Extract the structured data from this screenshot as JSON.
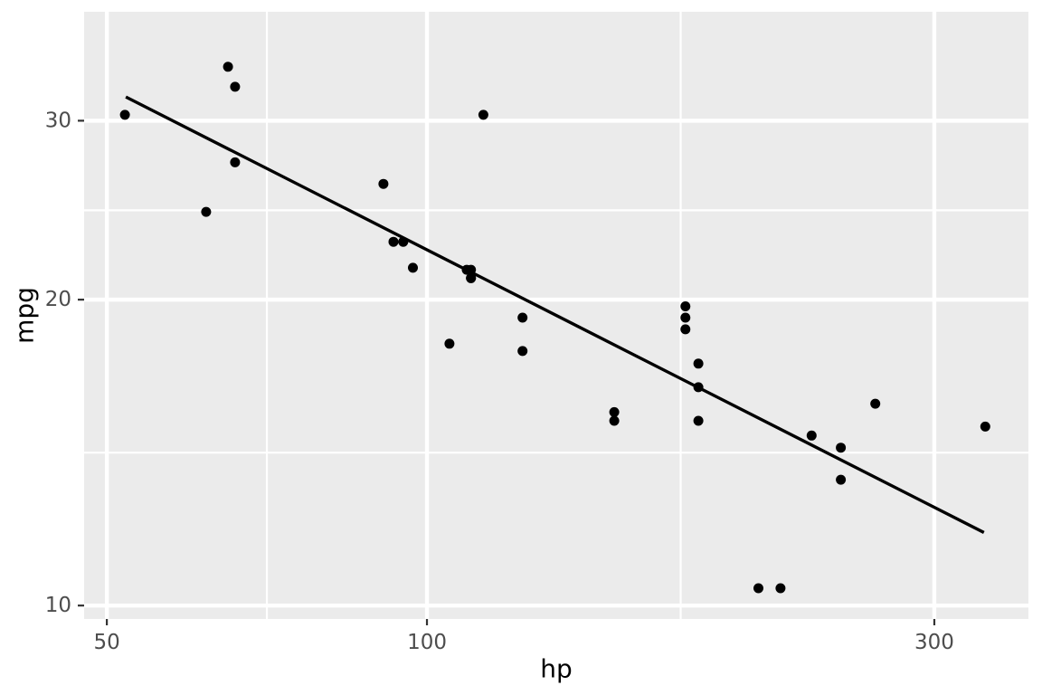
{
  "chart_data": {
    "type": "scatter",
    "title": "",
    "xlabel": "hp",
    "ylabel": "mpg",
    "x_scale": "log10",
    "y_scale": "log10",
    "x_ticks": [
      50,
      100,
      300
    ],
    "y_ticks": [
      10,
      20,
      30
    ],
    "x_minor_breaks": [
      70.71,
      173.21
    ],
    "y_minor_breaks": [
      14.14,
      24.49
    ],
    "x_range": [
      47.6,
      367.8
    ],
    "y_range": [
      9.7,
      38.4
    ],
    "grid": true,
    "legend_position": "none",
    "points": {
      "x": [
        110,
        110,
        93,
        110,
        175,
        105,
        245,
        62,
        95,
        123,
        123,
        180,
        180,
        180,
        205,
        215,
        230,
        66,
        52,
        65,
        97,
        150,
        150,
        245,
        175,
        66,
        91,
        113,
        264,
        175,
        335,
        109
      ],
      "y": [
        21.0,
        21.0,
        22.8,
        21.4,
        18.7,
        18.1,
        14.3,
        24.4,
        22.8,
        19.2,
        17.8,
        16.4,
        17.3,
        15.2,
        10.4,
        10.4,
        14.7,
        32.4,
        30.4,
        33.9,
        21.5,
        15.5,
        15.2,
        13.3,
        19.2,
        27.3,
        26.0,
        30.4,
        15.8,
        19.7,
        15.0,
        21.4
      ]
    },
    "trend_line": {
      "type": "linear-fit-loglog",
      "x": [
        52.1,
        334.0
      ],
      "y": [
        31.66,
        11.8
      ]
    },
    "colors": {
      "panel_bg": "#EBEBEB",
      "grid_major": "#FFFFFF",
      "grid_minor": "#FFFFFF",
      "point": "#000000",
      "trend": "#000000",
      "tick_text": "#4D4D4D",
      "tick_mark": "#333333",
      "axis_title": "#000000",
      "outer_bg": "#FFFFFF"
    }
  }
}
